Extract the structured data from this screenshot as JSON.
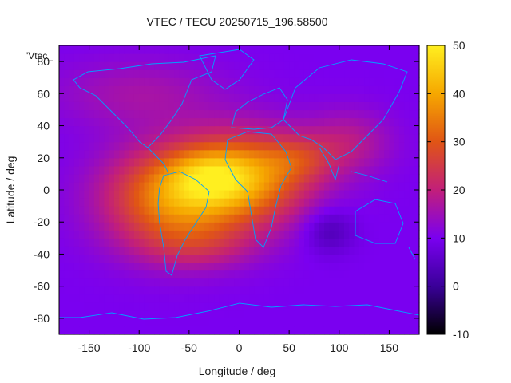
{
  "chart_data": {
    "type": "heatmap",
    "title": "VTEC / TECU 20250715_196.58500",
    "xlabel": "Longitude / deg",
    "ylabel": "Latitude / deg",
    "series_label": "'Vtec_",
    "xlim": [
      -180,
      180
    ],
    "ylim": [
      -90,
      90
    ],
    "x_ticks": [
      -150,
      -100,
      -50,
      0,
      50,
      100,
      150
    ],
    "y_ticks": [
      -80,
      -60,
      -40,
      -20,
      0,
      20,
      40,
      60,
      80
    ],
    "colorbar": {
      "range": [
        -10,
        50
      ],
      "ticks": [
        -10,
        0,
        10,
        20,
        30,
        40,
        50
      ],
      "palette": [
        "#000000",
        "#3a0099",
        "#7a00f0",
        "#c21f7a",
        "#e05515",
        "#f6a700",
        "#ffef20"
      ]
    },
    "grid_step_deg": 5,
    "background_tecu": 10,
    "blobs": [
      {
        "lon": -65,
        "lat": -5,
        "sx": 48,
        "sy": 22,
        "amp": 26
      },
      {
        "lon": 10,
        "lat": 8,
        "sx": 45,
        "sy": 20,
        "amp": 24
      },
      {
        "lon": -30,
        "lat": 10,
        "sx": 30,
        "sy": 12,
        "amp": 10
      },
      {
        "lon": 110,
        "lat": 30,
        "sx": 30,
        "sy": 14,
        "amp": 8
      },
      {
        "lon": 60,
        "lat": 20,
        "sx": 25,
        "sy": 10,
        "amp": 8
      },
      {
        "lon": -40,
        "lat": -35,
        "sx": 40,
        "sy": 10,
        "amp": 6
      },
      {
        "lon": 90,
        "lat": -25,
        "sx": 18,
        "sy": 10,
        "amp": -7
      },
      {
        "lon": -100,
        "lat": 60,
        "sx": 60,
        "sy": 15,
        "amp": 6
      }
    ]
  },
  "map_style": {
    "coast_color": "#00a0ff"
  }
}
